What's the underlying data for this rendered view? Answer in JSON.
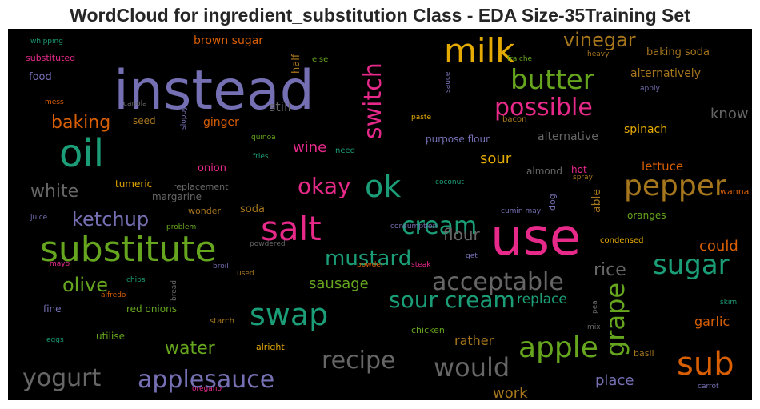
{
  "chart_data": {
    "type": "wordcloud",
    "title": "WordCloud for ingredient_substitution Class - EDA Size-35Training Set",
    "palette": {
      "background": "#000000",
      "green": "#1b9e77",
      "orange": "#d95f02",
      "purple": "#7570b3",
      "pink": "#e7298a",
      "lime": "#66a61e",
      "gold": "#e6ab02",
      "brown": "#a6761d",
      "gray": "#666666"
    },
    "words": [
      {
        "text": "instead",
        "color": "#7570b3"
      },
      {
        "text": "use",
        "color": "#e7298a"
      },
      {
        "text": "oil",
        "color": "#1b9e77"
      },
      {
        "text": "substitute",
        "color": "#66a61e"
      },
      {
        "text": "milk",
        "color": "#e6ab02"
      },
      {
        "text": "salt",
        "color": "#e7298a"
      },
      {
        "text": "switch",
        "color": "#e7298a"
      },
      {
        "text": "butter",
        "color": "#66a61e"
      },
      {
        "text": "ok",
        "color": "#1b9e77"
      },
      {
        "text": "possible",
        "color": "#e7298a"
      },
      {
        "text": "sugar",
        "color": "#1b9e77"
      },
      {
        "text": "pepper",
        "color": "#a6761d"
      },
      {
        "text": "swap",
        "color": "#1b9e77"
      },
      {
        "text": "acceptable",
        "color": "#666666"
      },
      {
        "text": "sour cream",
        "color": "#1b9e77"
      },
      {
        "text": "apple",
        "color": "#66a61e"
      },
      {
        "text": "sub",
        "color": "#d95f02"
      },
      {
        "text": "would",
        "color": "#666666"
      },
      {
        "text": "recipe",
        "color": "#666666"
      },
      {
        "text": "grape",
        "color": "#66a61e"
      },
      {
        "text": "applesauce",
        "color": "#7570b3"
      },
      {
        "text": "yogurt",
        "color": "#666666"
      },
      {
        "text": "cream",
        "color": "#1b9e77"
      },
      {
        "text": "okay",
        "color": "#e7298a"
      },
      {
        "text": "mustard",
        "color": "#1b9e77"
      },
      {
        "text": "ketchup",
        "color": "#7570b3"
      },
      {
        "text": "white",
        "color": "#666666"
      },
      {
        "text": "olive",
        "color": "#66a61e"
      },
      {
        "text": "baking",
        "color": "#d95f02"
      },
      {
        "text": "vinegar",
        "color": "#a6761d"
      },
      {
        "text": "rice",
        "color": "#666666"
      },
      {
        "text": "water",
        "color": "#66a61e"
      },
      {
        "text": "flour",
        "color": "#666666"
      },
      {
        "text": "could",
        "color": "#d95f02"
      },
      {
        "text": "sausage",
        "color": "#66a61e"
      },
      {
        "text": "work",
        "color": "#a6761d"
      },
      {
        "text": "place",
        "color": "#7570b3"
      },
      {
        "text": "garlic",
        "color": "#d95f02"
      },
      {
        "text": "know",
        "color": "#666666"
      },
      {
        "text": "wine",
        "color": "#e7298a"
      },
      {
        "text": "sour",
        "color": "#e6ab02"
      },
      {
        "text": "lettuce",
        "color": "#d95f02"
      },
      {
        "text": "rather",
        "color": "#a6761d"
      },
      {
        "text": "replace",
        "color": "#1b9e77"
      },
      {
        "text": "spinach",
        "color": "#e6ab02"
      },
      {
        "text": "still",
        "color": "#666666"
      },
      {
        "text": "alternatively",
        "color": "#a6761d"
      },
      {
        "text": "able",
        "color": "#a6761d"
      },
      {
        "text": "baking soda",
        "color": "#a6761d"
      },
      {
        "text": "brown sugar",
        "color": "#d95f02"
      },
      {
        "text": "half",
        "color": "#a6761d"
      },
      {
        "text": "ginger",
        "color": "#d95f02"
      },
      {
        "text": "alternative",
        "color": "#666666"
      },
      {
        "text": "food",
        "color": "#7570b3"
      },
      {
        "text": "substituted",
        "color": "#e7298a"
      },
      {
        "text": "onion",
        "color": "#e7298a"
      },
      {
        "text": "tumeric",
        "color": "#e6ab02"
      },
      {
        "text": "soda",
        "color": "#a6761d"
      },
      {
        "text": "margarine",
        "color": "#666666"
      },
      {
        "text": "replacement",
        "color": "#666666"
      },
      {
        "text": "seed",
        "color": "#a6761d"
      },
      {
        "text": "purpose flour",
        "color": "#7570b3"
      },
      {
        "text": "almond",
        "color": "#666666"
      },
      {
        "text": "hot",
        "color": "#e7298a"
      },
      {
        "text": "dog",
        "color": "#7570b3"
      },
      {
        "text": "oranges",
        "color": "#66a61e"
      },
      {
        "text": "wanna",
        "color": "#d95f02"
      },
      {
        "text": "fine",
        "color": "#7570b3"
      },
      {
        "text": "utilise",
        "color": "#66a61e"
      },
      {
        "text": "red onions",
        "color": "#66a61e"
      },
      {
        "text": "alright",
        "color": "#e6ab02"
      },
      {
        "text": "chicken",
        "color": "#66a61e"
      },
      {
        "text": "basil",
        "color": "#a6761d"
      },
      {
        "text": "wonder",
        "color": "#a6761d"
      },
      {
        "text": "else",
        "color": "#66a61e"
      },
      {
        "text": "apply",
        "color": "#7570b3"
      },
      {
        "text": "condensed",
        "color": "#e6ab02"
      },
      {
        "text": "heavy",
        "color": "#a6761d"
      },
      {
        "text": "fraiche",
        "color": "#66a61e"
      },
      {
        "text": "paste",
        "color": "#e6ab02"
      },
      {
        "text": "bacon",
        "color": "#a6761d"
      },
      {
        "text": "need",
        "color": "#1b9e77"
      },
      {
        "text": "fries",
        "color": "#1b9e77"
      },
      {
        "text": "quinoa",
        "color": "#66a61e"
      },
      {
        "text": "coconut",
        "color": "#1b9e77"
      },
      {
        "text": "spray",
        "color": "#a6761d"
      },
      {
        "text": "cumin may",
        "color": "#7570b3"
      },
      {
        "text": "consumption",
        "color": "#7570b3"
      },
      {
        "text": "steak",
        "color": "#e7298a"
      },
      {
        "text": "powder",
        "color": "#d95f02"
      },
      {
        "text": "get",
        "color": "#7570b3"
      },
      {
        "text": "mix",
        "color": "#666666"
      },
      {
        "text": "pea",
        "color": "#666666"
      },
      {
        "text": "skim",
        "color": "#1b9e77"
      },
      {
        "text": "carrot",
        "color": "#7570b3"
      },
      {
        "text": "starch",
        "color": "#a6761d"
      },
      {
        "text": "oregano",
        "color": "#e7298a"
      },
      {
        "text": "eggs",
        "color": "#1b9e77"
      },
      {
        "text": "alfredo",
        "color": "#d95f02"
      },
      {
        "text": "chips",
        "color": "#1b9e77"
      },
      {
        "text": "mayo",
        "color": "#e7298a"
      },
      {
        "text": "juice",
        "color": "#7570b3"
      },
      {
        "text": "problem",
        "color": "#66a61e"
      },
      {
        "text": "powdered",
        "color": "#666666"
      },
      {
        "text": "broil",
        "color": "#7570b3"
      },
      {
        "text": "used",
        "color": "#a6761d"
      },
      {
        "text": "bread",
        "color": "#666666"
      },
      {
        "text": "sauce",
        "color": "#7570b3"
      },
      {
        "text": "canola",
        "color": "#666666"
      },
      {
        "text": "sloppy",
        "color": "#7570b3"
      },
      {
        "text": "mess",
        "color": "#d95f02"
      },
      {
        "text": "whipping",
        "color": "#1b9e77"
      }
    ]
  }
}
